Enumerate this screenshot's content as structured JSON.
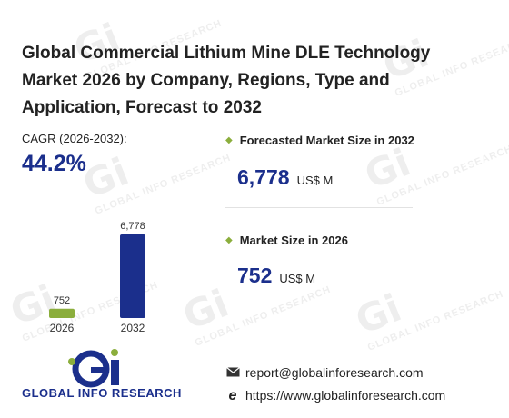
{
  "title": "Global Commercial Lithium Mine DLE Technology Market 2026 by Company, Regions, Type and Application, Forecast to 2032",
  "cagr": {
    "label": "CAGR (2026-2032):",
    "value": "44.2%"
  },
  "stats": [
    {
      "label": "Forecasted Market Size in 2032",
      "value": "6,778",
      "unit": "US$ M"
    },
    {
      "label": "Market Size in 2026",
      "value": "752",
      "unit": "US$ M"
    }
  ],
  "brand": {
    "logo_text": "GLOBAL INFO RESEARCH",
    "watermark": "GLOBAL INFO RESEARCH"
  },
  "contact": {
    "email": "report@globalinforesearch.com",
    "website": "https://www.globalinforesearch.com"
  },
  "colors": {
    "accent": "#1b2f8c",
    "bar_2026": "#8bae3c",
    "bar_2032": "#1b2f8c",
    "bullet": "#8bae3c"
  },
  "icons": {
    "email": "envelope-icon",
    "website": "globe-e-icon"
  },
  "chart_data": {
    "type": "bar",
    "categories": [
      "2026",
      "2032"
    ],
    "values": [
      752,
      6778
    ],
    "data_labels": [
      "752",
      "6,778"
    ],
    "title": "",
    "xlabel": "",
    "ylabel": "",
    "ylim": [
      0,
      6778
    ],
    "grid": false,
    "legend": "none"
  }
}
